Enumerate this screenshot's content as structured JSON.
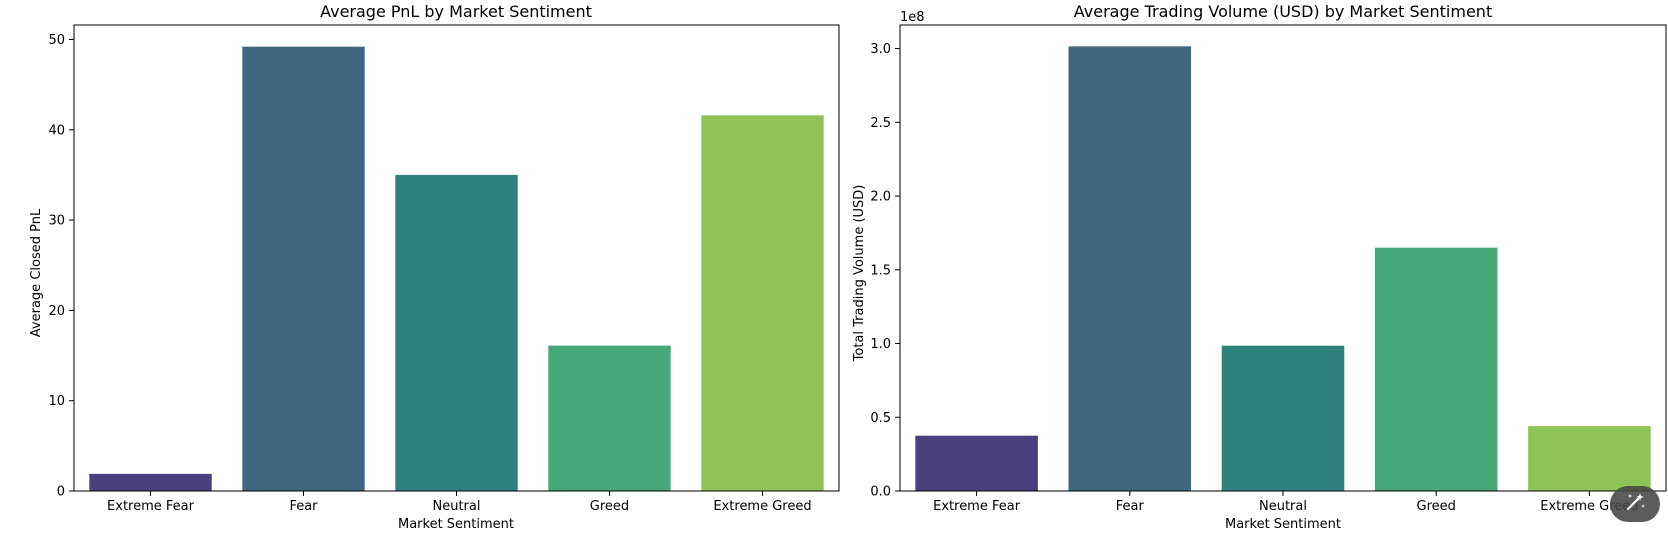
{
  "chart_data": [
    {
      "type": "bar",
      "title": "Average PnL by Market Sentiment",
      "xlabel": "Market Sentiment",
      "ylabel": "Average Closed PnL",
      "categories": [
        "Extreme Fear",
        "Fear",
        "Neutral",
        "Greed",
        "Extreme Greed"
      ],
      "values": [
        1.9,
        49.2,
        35.0,
        16.1,
        41.6
      ],
      "colors": [
        "#4b3f7e",
        "#3e6680",
        "#2e827e",
        "#47a879",
        "#8ec457"
      ],
      "ylim": [
        0,
        51.6
      ],
      "yticks": [
        0,
        10,
        20,
        30,
        40,
        50
      ],
      "ytick_labels": [
        "0",
        "10",
        "20",
        "30",
        "40",
        "50"
      ],
      "offset_label": "",
      "grid": false,
      "legend": false
    },
    {
      "type": "bar",
      "title": "Average Trading Volume (USD) by Market Sentiment",
      "xlabel": "Market Sentiment",
      "ylabel": "Total Trading Volume (USD)",
      "categories": [
        "Extreme Fear",
        "Fear",
        "Neutral",
        "Greed",
        "Extreme Greed"
      ],
      "values": [
        37500000,
        301500000,
        98500000,
        165000000,
        44000000
      ],
      "colors": [
        "#4b3f7e",
        "#3e6680",
        "#2e827e",
        "#47a879",
        "#8ec457"
      ],
      "ylim": [
        0,
        316000000
      ],
      "yticks": [
        0,
        50000000,
        100000000,
        150000000,
        200000000,
        250000000,
        300000000
      ],
      "ytick_labels": [
        "0.0",
        "0.5",
        "1.0",
        "1.5",
        "2.0",
        "2.5",
        "3.0"
      ],
      "offset_label": "1e8",
      "grid": false,
      "legend": false
    }
  ],
  "toolbar": {
    "magic_icon": "magic-wand-icon"
  }
}
